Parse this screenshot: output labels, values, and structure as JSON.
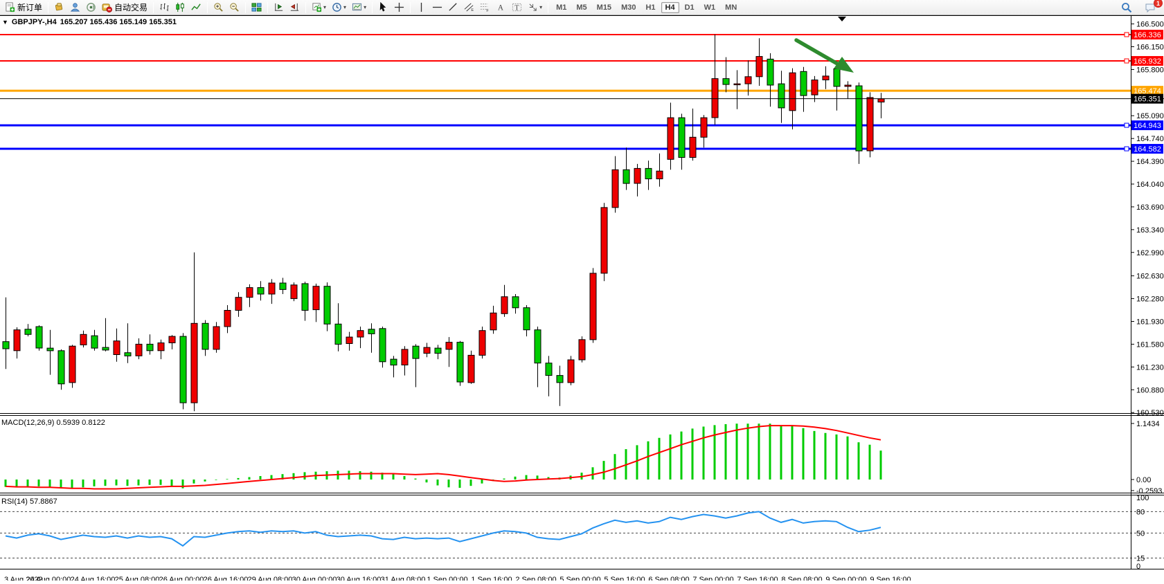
{
  "toolbar": {
    "groups": [
      {
        "items": [
          {
            "icon": "new-order",
            "label": "新订单"
          }
        ]
      },
      {
        "items": [
          {
            "icon": "market-watch"
          },
          {
            "icon": "community"
          },
          {
            "icon": "signals"
          },
          {
            "icon": "autotrading",
            "label": "自动交易"
          }
        ]
      },
      {
        "items": [
          {
            "icon": "chart-bars"
          },
          {
            "icon": "chart-candles"
          },
          {
            "icon": "chart-line"
          }
        ]
      },
      {
        "items": [
          {
            "icon": "zoom-in"
          },
          {
            "icon": "zoom-out"
          }
        ]
      },
      {
        "items": [
          {
            "icon": "tile-windows"
          }
        ]
      },
      {
        "items": [
          {
            "icon": "auto-scroll"
          },
          {
            "icon": "chart-shift"
          }
        ]
      },
      {
        "items": [
          {
            "icon": "new-chart",
            "dropdown": true
          },
          {
            "icon": "periods-clock",
            "dropdown": true
          },
          {
            "icon": "templates",
            "dropdown": true
          }
        ]
      },
      {
        "items": [
          {
            "icon": "cursor"
          },
          {
            "icon": "crosshair"
          }
        ]
      },
      {
        "items": [
          {
            "icon": "vertical-line"
          },
          {
            "icon": "horizontal-line"
          },
          {
            "icon": "trendline"
          },
          {
            "icon": "channel"
          },
          {
            "icon": "fibonacci"
          },
          {
            "icon": "text"
          },
          {
            "icon": "text-label"
          },
          {
            "icon": "arrows",
            "dropdown": true
          }
        ]
      }
    ],
    "timeframes": [
      "M1",
      "M5",
      "M15",
      "M30",
      "H1",
      "H4",
      "D1",
      "W1",
      "MN"
    ],
    "active_timeframe": "H4",
    "right_icons": [
      {
        "icon": "search"
      },
      {
        "icon": "chat",
        "badge": "1"
      }
    ]
  },
  "header": {
    "symbol_period": "GBPJPY-,H4",
    "ohlc_text": "165.207 165.436 165.149 165.351"
  },
  "indicator_labels": {
    "macd_name": "MACD(12,26,9)",
    "macd_values": "0.5939 0.8122",
    "rsi_name": "RSI(14)",
    "rsi_value": "57.8867"
  },
  "colors": {
    "bull": "#ee0000",
    "bear": "#00cc00",
    "outline": "#000000",
    "macd_hist": "#00cc00",
    "macd_signal": "#ff0000",
    "rsi_line": "#2492f0",
    "level_red": "#ff0000",
    "level_orange": "#ffa500",
    "level_blue": "#0000ff",
    "current_price": "#000000",
    "arrow_green": "#2e8b2e"
  },
  "chart_data": [
    {
      "type": "candlestick",
      "title": "GBPJPY-,H4",
      "ohlc_header": {
        "open": "165.207",
        "high": "165.436",
        "low": "165.149",
        "close": "165.351"
      },
      "ylim": [
        160.52,
        166.63
      ],
      "yticks": [
        166.5,
        166.15,
        165.8,
        165.09,
        164.74,
        164.39,
        164.04,
        163.69,
        163.34,
        162.99,
        162.63,
        162.28,
        161.93,
        161.58,
        161.23,
        160.88,
        160.53
      ],
      "levels": [
        {
          "price": 166.336,
          "color": "#ff0000",
          "width": 2,
          "handle": true
        },
        {
          "price": 165.932,
          "color": "#ff0000",
          "width": 2,
          "handle": true
        },
        {
          "price": 165.474,
          "color": "#ffa500",
          "width": 3,
          "handle": false
        },
        {
          "price": 164.943,
          "color": "#0000ff",
          "width": 3,
          "handle": true
        },
        {
          "price": 164.582,
          "color": "#0000ff",
          "width": 3,
          "handle": true
        }
      ],
      "current_price": 165.351,
      "candles": [
        [
          161.62,
          162.3,
          161.2,
          161.51
        ],
        [
          161.48,
          161.84,
          161.36,
          161.8
        ],
        [
          161.81,
          161.89,
          161.7,
          161.73
        ],
        [
          161.85,
          161.87,
          161.48,
          161.52
        ],
        [
          161.52,
          161.8,
          161.11,
          161.48
        ],
        [
          161.48,
          161.5,
          160.88,
          160.97
        ],
        [
          160.99,
          161.57,
          160.91,
          161.55
        ],
        [
          161.57,
          161.79,
          161.53,
          161.73
        ],
        [
          161.71,
          161.8,
          161.48,
          161.52
        ],
        [
          161.53,
          161.98,
          161.47,
          161.49
        ],
        [
          161.42,
          161.82,
          161.31,
          161.63
        ],
        [
          161.45,
          161.9,
          161.29,
          161.4
        ],
        [
          161.4,
          161.67,
          161.35,
          161.58
        ],
        [
          161.58,
          161.73,
          161.42,
          161.48
        ],
        [
          161.48,
          161.65,
          161.35,
          161.6
        ],
        [
          161.6,
          161.72,
          161.5,
          161.7
        ],
        [
          161.7,
          161.75,
          160.58,
          160.68
        ],
        [
          160.68,
          162.99,
          160.55,
          161.9
        ],
        [
          161.9,
          161.95,
          161.4,
          161.5
        ],
        [
          161.5,
          161.92,
          161.45,
          161.85
        ],
        [
          161.85,
          162.18,
          161.75,
          162.1
        ],
        [
          162.1,
          162.38,
          162.0,
          162.3
        ],
        [
          162.3,
          162.5,
          162.15,
          162.45
        ],
        [
          162.45,
          162.55,
          162.25,
          162.35
        ],
        [
          162.35,
          162.58,
          162.2,
          162.52
        ],
        [
          162.52,
          162.6,
          162.35,
          162.42
        ],
        [
          162.28,
          162.53,
          162.24,
          162.49
        ],
        [
          162.51,
          162.54,
          161.94,
          162.1
        ],
        [
          162.11,
          162.51,
          161.92,
          162.47
        ],
        [
          162.47,
          162.53,
          161.78,
          161.89
        ],
        [
          161.89,
          162.21,
          161.47,
          161.58
        ],
        [
          161.59,
          161.77,
          161.48,
          161.69
        ],
        [
          161.69,
          161.85,
          161.52,
          161.79
        ],
        [
          161.81,
          161.9,
          161.45,
          161.74
        ],
        [
          161.82,
          161.85,
          161.22,
          161.31
        ],
        [
          161.35,
          161.4,
          161.07,
          161.26
        ],
        [
          161.26,
          161.55,
          161.1,
          161.5
        ],
        [
          161.55,
          161.58,
          160.92,
          161.36
        ],
        [
          161.44,
          161.6,
          161.38,
          161.53
        ],
        [
          161.52,
          161.57,
          161.35,
          161.44
        ],
        [
          161.5,
          161.69,
          161.23,
          161.61
        ],
        [
          161.61,
          161.63,
          160.94,
          161.0
        ],
        [
          160.99,
          161.48,
          160.97,
          161.41
        ],
        [
          161.41,
          161.85,
          161.36,
          161.79
        ],
        [
          161.8,
          162.17,
          161.74,
          162.06
        ],
        [
          162.05,
          162.49,
          162.0,
          162.31
        ],
        [
          162.31,
          162.35,
          162.05,
          162.14
        ],
        [
          162.14,
          162.18,
          161.7,
          161.8
        ],
        [
          161.8,
          161.85,
          160.92,
          161.29
        ],
        [
          161.29,
          161.4,
          160.78,
          161.1
        ],
        [
          161.1,
          161.25,
          160.63,
          160.99
        ],
        [
          160.99,
          161.4,
          160.95,
          161.34
        ],
        [
          161.34,
          161.7,
          161.3,
          161.65
        ],
        [
          161.65,
          162.75,
          161.6,
          162.67
        ],
        [
          162.67,
          163.75,
          162.55,
          163.68
        ],
        [
          163.68,
          164.47,
          163.6,
          164.26
        ],
        [
          164.26,
          164.6,
          163.95,
          164.05
        ],
        [
          164.05,
          164.35,
          163.85,
          164.28
        ],
        [
          164.28,
          164.4,
          163.95,
          164.12
        ],
        [
          164.12,
          164.51,
          164.0,
          164.24
        ],
        [
          164.42,
          165.29,
          164.26,
          165.06
        ],
        [
          165.06,
          165.12,
          164.26,
          164.45
        ],
        [
          164.45,
          165.2,
          164.4,
          164.76
        ],
        [
          164.76,
          165.1,
          164.6,
          165.06
        ],
        [
          165.06,
          166.34,
          164.95,
          165.66
        ],
        [
          165.66,
          165.99,
          165.45,
          165.57
        ],
        [
          165.57,
          165.79,
          165.19,
          165.58
        ],
        [
          165.58,
          165.94,
          165.4,
          165.69
        ],
        [
          165.69,
          166.28,
          165.55,
          166.0
        ],
        [
          165.96,
          166.05,
          165.23,
          165.56
        ],
        [
          165.58,
          165.78,
          164.98,
          165.21
        ],
        [
          165.17,
          165.82,
          164.88,
          165.75
        ],
        [
          165.77,
          165.84,
          165.15,
          165.4
        ],
        [
          165.41,
          165.7,
          165.3,
          165.64
        ],
        [
          165.64,
          165.85,
          165.5,
          165.7
        ],
        [
          165.81,
          165.91,
          165.17,
          165.54
        ],
        [
          165.54,
          165.62,
          165.35,
          165.56
        ],
        [
          165.55,
          165.6,
          164.35,
          164.55
        ],
        [
          164.55,
          165.45,
          164.45,
          165.37
        ],
        [
          165.3,
          165.44,
          165.05,
          165.35
        ]
      ],
      "x_labels": [
        "3 Aug 2022",
        "24 Aug 00:00",
        "24 Aug 16:00",
        "25 Aug 08:00",
        "26 Aug 00:00",
        "26 Aug 16:00",
        "29 Aug 08:00",
        "30 Aug 00:00",
        "30 Aug 16:00",
        "31 Aug 08:00",
        "1 Sep 00:00",
        "1 Sep 16:00",
        "2 Sep 08:00",
        "5 Sep 00:00",
        "5 Sep 16:00",
        "6 Sep 08:00",
        "7 Sep 00:00",
        "7 Sep 16:00",
        "8 Sep 08:00",
        "9 Sep 00:00",
        "9 Sep 16:00"
      ],
      "annotation_arrow": {
        "direction": "down-right",
        "color": "#2e8b2e"
      }
    },
    {
      "type": "bar",
      "name": "MACD(12,26,9)",
      "current_values": [
        0.5939,
        0.8122
      ],
      "yticks": [
        "1.1434",
        "0.00",
        "-0.2593"
      ],
      "ylim": [
        -0.2593,
        1.1434
      ],
      "histogram": [
        -0.15,
        -0.16,
        -0.15,
        -0.14,
        -0.16,
        -0.18,
        -0.19,
        -0.16,
        -0.14,
        -0.13,
        -0.12,
        -0.13,
        -0.12,
        -0.11,
        -0.11,
        -0.14,
        -0.18,
        -0.08,
        -0.04,
        -0.01,
        0.01,
        0.03,
        0.05,
        0.07,
        0.09,
        0.11,
        0.13,
        0.15,
        0.16,
        0.17,
        0.18,
        0.18,
        0.17,
        0.16,
        0.14,
        0.11,
        0.07,
        0.02,
        -0.06,
        -0.12,
        -0.16,
        -0.17,
        -0.13,
        -0.08,
        -0.03,
        0.02,
        0.06,
        0.09,
        0.08,
        0.05,
        0.04,
        0.08,
        0.14,
        0.25,
        0.38,
        0.52,
        0.62,
        0.7,
        0.78,
        0.85,
        0.92,
        0.98,
        1.04,
        1.08,
        1.11,
        1.13,
        1.14,
        1.14,
        1.14,
        1.14,
        1.09,
        1.11,
        1.05,
        0.99,
        0.95,
        0.92,
        0.88,
        0.76,
        0.71,
        0.59
      ],
      "signal": [
        -0.14,
        -0.15,
        -0.15,
        -0.16,
        -0.16,
        -0.17,
        -0.18,
        -0.18,
        -0.19,
        -0.19,
        -0.19,
        -0.18,
        -0.17,
        -0.16,
        -0.15,
        -0.14,
        -0.14,
        -0.13,
        -0.12,
        -0.1,
        -0.08,
        -0.06,
        -0.04,
        -0.02,
        0.0,
        0.02,
        0.04,
        0.06,
        0.08,
        0.09,
        0.1,
        0.11,
        0.12,
        0.12,
        0.12,
        0.12,
        0.11,
        0.1,
        0.11,
        0.12,
        0.1,
        0.07,
        0.04,
        0.01,
        -0.02,
        -0.04,
        -0.03,
        -0.01,
        0.0,
        0.01,
        0.02,
        0.04,
        0.06,
        0.1,
        0.15,
        0.22,
        0.3,
        0.38,
        0.47,
        0.55,
        0.63,
        0.71,
        0.78,
        0.85,
        0.91,
        0.96,
        1.01,
        1.05,
        1.08,
        1.1,
        1.1,
        1.1,
        1.09,
        1.07,
        1.04,
        1.0,
        0.95,
        0.9,
        0.85,
        0.81
      ]
    },
    {
      "type": "line",
      "name": "RSI(14)",
      "current_value": 57.8867,
      "yticks": [
        "100",
        "80",
        "50",
        "15",
        "0"
      ],
      "levels": [
        80,
        50,
        15
      ],
      "ylim": [
        0,
        100
      ],
      "series": [
        46,
        43,
        47,
        49,
        46,
        41,
        44,
        47,
        45,
        44,
        46,
        43,
        46,
        44,
        45,
        42,
        32,
        45,
        44,
        47,
        50,
        52,
        53,
        51,
        53,
        52,
        53,
        50,
        52,
        47,
        45,
        46,
        47,
        46,
        42,
        41,
        44,
        42,
        43,
        42,
        43,
        38,
        42,
        46,
        50,
        53,
        52,
        50,
        44,
        42,
        41,
        45,
        49,
        57,
        63,
        68,
        65,
        67,
        64,
        66,
        72,
        69,
        73,
        76,
        74,
        71,
        74,
        78,
        80,
        71,
        65,
        69,
        64,
        66,
        67,
        66,
        58,
        52,
        54,
        57.9
      ]
    }
  ]
}
